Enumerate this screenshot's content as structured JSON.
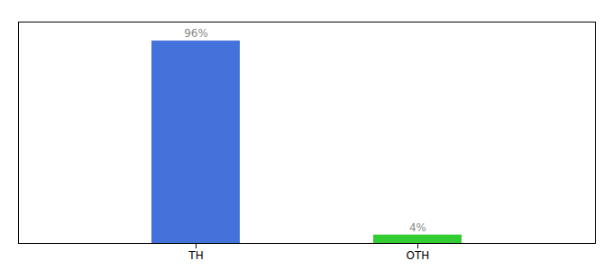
{
  "chart_data": {
    "type": "bar",
    "categories": [
      "TH",
      "OTH"
    ],
    "values": [
      96,
      4
    ],
    "value_labels": [
      "96%",
      "4%"
    ],
    "colors": [
      "#4472db",
      "#33cc33"
    ],
    "ylim": [
      0,
      105
    ],
    "tick_labels": "x"
  }
}
